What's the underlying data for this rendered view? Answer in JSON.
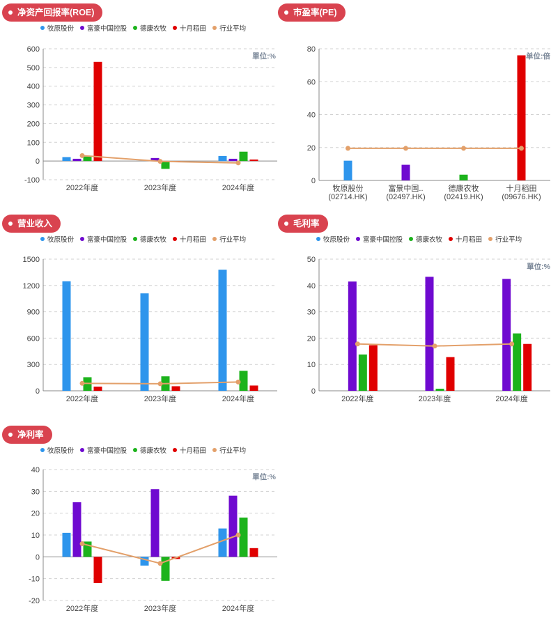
{
  "colors": {
    "muyuan": "#2e95ec",
    "fuhao": "#6f0ad0",
    "dekang": "#1cb31c",
    "shiyue": "#e00000",
    "industry_avg": "#e3a06a",
    "pill": "#d9434f"
  },
  "legend_items": [
    {
      "name": "牧原股份",
      "color": "#2e95ec"
    },
    {
      "name": "富豪中国控股",
      "color": "#6f0ad0"
    },
    {
      "name": "德康农牧",
      "color": "#1cb31c"
    },
    {
      "name": "十月稻田",
      "color": "#e00000"
    },
    {
      "name": "行业平均",
      "color": "#e3a06a"
    }
  ],
  "chart_data": [
    {
      "id": "roe",
      "type": "bar",
      "title": "净资产回报率(ROE)",
      "unit": "單位:%",
      "categories": [
        "2022年度",
        "2023年度",
        "2024年度"
      ],
      "ylim": [
        -100,
        600
      ],
      "yticks": [
        -100,
        0,
        100,
        200,
        300,
        400,
        500,
        600
      ],
      "grid": true,
      "legend": "top-left",
      "series": [
        {
          "name": "牧原股份",
          "values": [
            21,
            0,
            27
          ]
        },
        {
          "name": "富豪中国控股",
          "values": [
            12,
            16,
            12
          ]
        },
        {
          "name": "德康农牧",
          "values": [
            24,
            -42,
            50
          ]
        },
        {
          "name": "十月稻田",
          "values": [
            530,
            -5,
            8
          ]
        }
      ],
      "line": {
        "name": "行业平均",
        "values": [
          29,
          -2,
          -10
        ]
      }
    },
    {
      "id": "pe",
      "type": "bar",
      "title": "市盈率(PE)",
      "unit": "单位:倍",
      "categories": [
        "牧原股份\n(02714.HK)",
        "富景中国..\n(02497.HK)",
        "德康农牧\n(02419.HK)",
        "十月稻田\n(09676.HK)"
      ],
      "ylim": [
        0,
        80
      ],
      "yticks": [
        0,
        20,
        40,
        60,
        80
      ],
      "grid": true,
      "series": [
        {
          "name": "牧原股份",
          "values": [
            12,
            0,
            0,
            0
          ]
        },
        {
          "name": "富豪中国控股",
          "values": [
            0,
            9.5,
            0,
            0
          ]
        },
        {
          "name": "德康农牧",
          "values": [
            0,
            0,
            3.5,
            0
          ]
        },
        {
          "name": "十月稻田",
          "values": [
            0,
            0,
            0,
            76
          ]
        }
      ],
      "line": {
        "name": "行业平均",
        "values": [
          19.5,
          19.5,
          19.5,
          19.5
        ]
      }
    },
    {
      "id": "revenue",
      "type": "bar",
      "title": "营业收入",
      "unit": "",
      "categories": [
        "2022年度",
        "2023年度",
        "2024年度"
      ],
      "ylim": [
        0,
        1500
      ],
      "yticks": [
        0,
        300,
        600,
        900,
        1200,
        1500
      ],
      "grid": true,
      "legend": "top-left",
      "series": [
        {
          "name": "牧原股份",
          "values": [
            1248,
            1110,
            1380
          ]
        },
        {
          "name": "富豪中国控股",
          "values": [
            0,
            0,
            0
          ]
        },
        {
          "name": "德康农牧",
          "values": [
            155,
            165,
            228
          ]
        },
        {
          "name": "十月稻田",
          "values": [
            48,
            52,
            60
          ]
        }
      ],
      "line": {
        "name": "行业平均",
        "values": [
          85,
          80,
          100
        ]
      }
    },
    {
      "id": "gross_margin",
      "type": "bar",
      "title": "毛利率",
      "unit": "單位:%",
      "categories": [
        "2022年度",
        "2023年度",
        "2024年度"
      ],
      "ylim": [
        0,
        50
      ],
      "yticks": [
        0,
        10,
        20,
        30,
        40,
        50
      ],
      "grid": true,
      "legend": "top-left",
      "series": [
        {
          "name": "牧原股份",
          "values": [
            0,
            0,
            0
          ]
        },
        {
          "name": "富豪中国控股",
          "values": [
            41.5,
            43.3,
            42.5
          ]
        },
        {
          "name": "德康农牧",
          "values": [
            13.8,
            0.8,
            21.8
          ]
        },
        {
          "name": "十月稻田",
          "values": [
            17.3,
            12.8,
            17.8
          ]
        }
      ],
      "line": {
        "name": "行业平均",
        "values": [
          17.8,
          17,
          17.8
        ]
      }
    },
    {
      "id": "net_margin",
      "type": "bar",
      "title": "净利率",
      "unit": "單位:%",
      "categories": [
        "2022年度",
        "2023年度",
        "2024年度"
      ],
      "ylim": [
        -20,
        40
      ],
      "yticks": [
        -20,
        -10,
        0,
        10,
        20,
        30,
        40
      ],
      "grid": true,
      "legend": "top-left",
      "series": [
        {
          "name": "牧原股份",
          "values": [
            11,
            -4,
            13
          ]
        },
        {
          "name": "富豪中国控股",
          "values": [
            25,
            31,
            28
          ]
        },
        {
          "name": "德康农牧",
          "values": [
            7,
            -11,
            18
          ]
        },
        {
          "name": "十月稻田",
          "values": [
            -12,
            -1,
            4
          ]
        }
      ],
      "line": {
        "name": "行业平均",
        "values": [
          6,
          -3,
          10
        ]
      }
    }
  ]
}
